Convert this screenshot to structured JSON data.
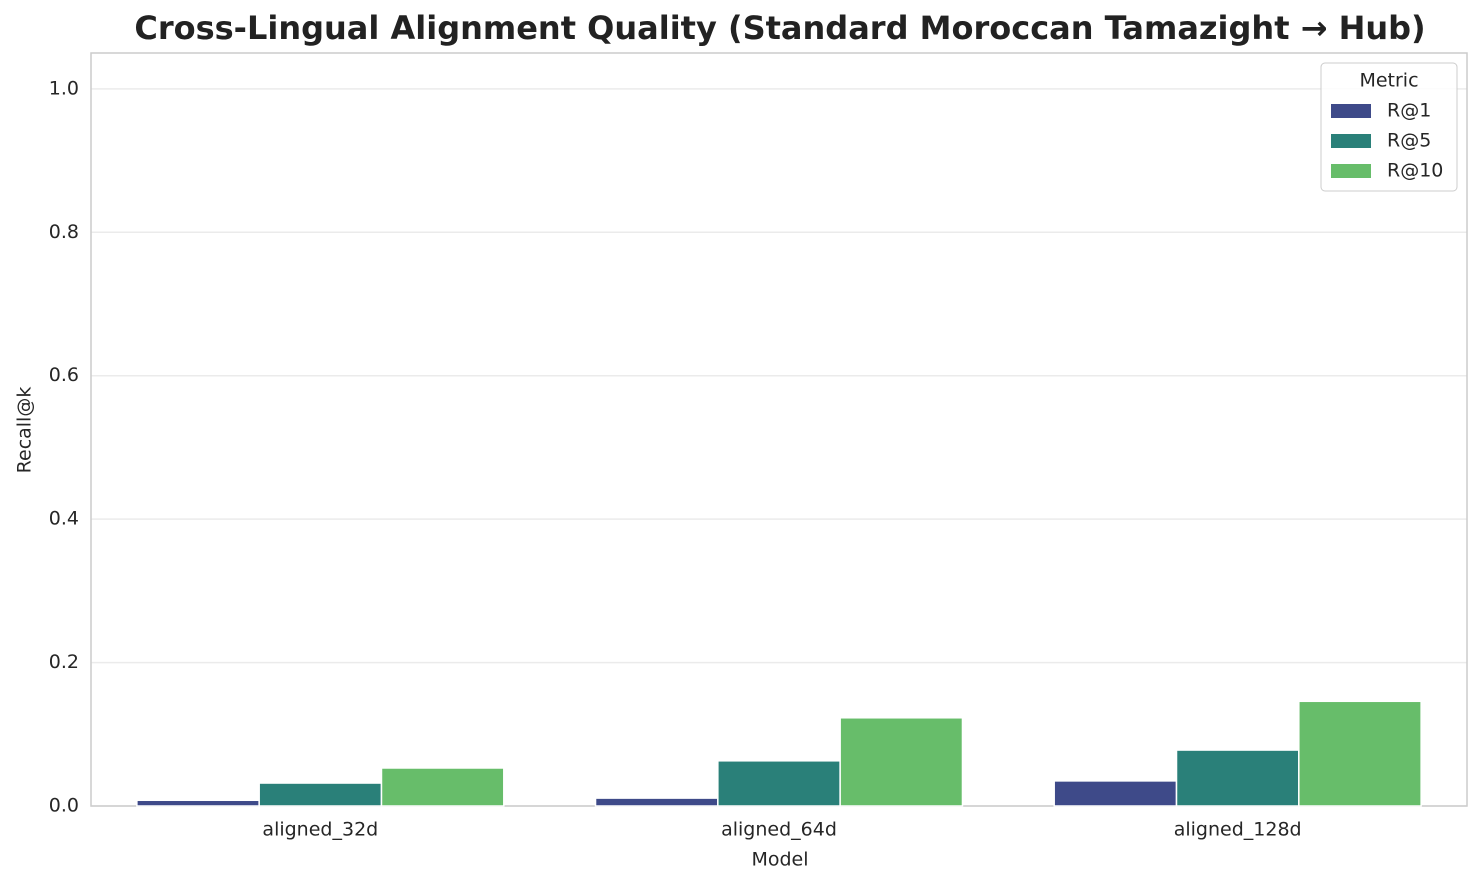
{
  "chart_data": {
    "type": "bar",
    "title": "Cross-Lingual Alignment Quality (Standard Moroccan Tamazight → Hub)",
    "x_label": "Model",
    "y_label": "Recall@k",
    "categories": [
      "aligned_32d",
      "aligned_64d",
      "aligned_128d"
    ],
    "legend_title": "Metric",
    "legend_position": "upper right",
    "series": [
      {
        "name": "R@1",
        "color": "#3e4a89",
        "values": [
          0.008,
          0.011,
          0.035
        ]
      },
      {
        "name": "R@5",
        "color": "#2a8079",
        "values": [
          0.032,
          0.063,
          0.078
        ]
      },
      {
        "name": "R@10",
        "color": "#67bd6a",
        "values": [
          0.053,
          0.123,
          0.146
        ]
      }
    ],
    "ylim": [
      0,
      1.05
    ],
    "yticks": [
      {
        "value": 0,
        "label": "0.0"
      },
      0.2,
      0.4,
      0.6,
      0.8,
      {
        "value": 1,
        "label": "1.0"
      }
    ],
    "grid": true
  }
}
